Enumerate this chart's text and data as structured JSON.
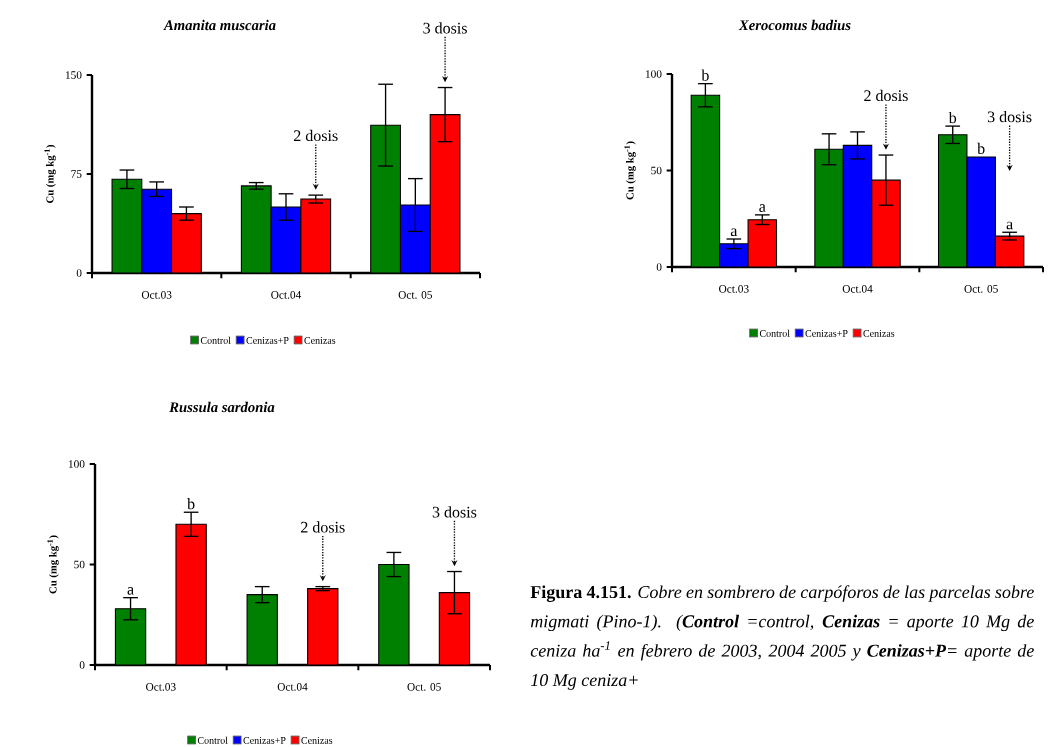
{
  "chart_data": [
    {
      "type": "bar",
      "title": "Amanita muscaria",
      "ylabel": "Cu (mg kg$^{-1}$)",
      "categories": [
        "Oct.03",
        "Oct.04",
        "Oct. 05"
      ],
      "ylim": [
        0,
        150
      ],
      "yticks": [
        0,
        75,
        150
      ],
      "legend": "bottom",
      "series": [
        {
          "name": "Control",
          "color": "#008000",
          "values": [
            71,
            66,
            112
          ],
          "errors": [
            7,
            2.5,
            31
          ]
        },
        {
          "name": "Cenizas+P",
          "color": "#0000ff",
          "values": [
            63.5,
            50,
            51.5
          ],
          "errors": [
            5.5,
            10,
            20
          ]
        },
        {
          "name": "Cenizas",
          "color": "#ff0000",
          "values": [
            45,
            56,
            120
          ],
          "errors": [
            5,
            3,
            20.5
          ]
        }
      ],
      "annotations": [
        "2 dosis",
        "3 dosis"
      ]
    },
    {
      "type": "bar",
      "title": "Xerocomus badius",
      "ylabel": "Cu (mg kg$^{-1}$)",
      "categories": [
        "Oct.03",
        "Oct.04",
        "Oct. 05"
      ],
      "ylim": [
        0,
        100
      ],
      "yticks": [
        0,
        50,
        100
      ],
      "legend": "bottom",
      "series": [
        {
          "name": "Control",
          "color": "#008000",
          "values": [
            89,
            61,
            68.5
          ],
          "errors": [
            6,
            8,
            4.5
          ],
          "value_labels": [
            "b",
            null,
            "b"
          ]
        },
        {
          "name": "Cenizas+P",
          "color": "#0000ff",
          "values": [
            12,
            63,
            57
          ],
          "errors": [
            2.5,
            7,
            null
          ],
          "value_labels": [
            "a",
            null,
            "b"
          ]
        },
        {
          "name": "Cenizas",
          "color": "#ff0000",
          "values": [
            24.5,
            45,
            16
          ],
          "errors": [
            2.5,
            13,
            2
          ],
          "value_labels": [
            "a",
            null,
            "a"
          ]
        }
      ],
      "annotations": [
        "2 dosis",
        "3 dosis"
      ]
    },
    {
      "type": "bar",
      "title": "Russula sardonia",
      "ylabel": "Cu (mg kg$^{-1}$)",
      "categories": [
        "Oct.03",
        "Oct.04",
        "Oct. 05"
      ],
      "ylim": [
        0,
        100
      ],
      "yticks": [
        0,
        50,
        100
      ],
      "legend": "bottom",
      "series": [
        {
          "name": "Control",
          "color": "#008000",
          "values": [
            28,
            35,
            50
          ],
          "errors": [
            5.5,
            4,
            6
          ],
          "value_labels": [
            "a",
            null,
            null
          ]
        },
        {
          "name": "Cenizas+P",
          "color": "#0000ff",
          "values": [
            null,
            null,
            null
          ]
        },
        {
          "name": "Cenizas",
          "color": "#ff0000",
          "values": [
            70,
            38,
            36
          ],
          "errors": [
            6,
            1,
            10.5
          ],
          "value_labels": [
            "b",
            null,
            null
          ]
        }
      ],
      "annotations": [
        "2 dosis",
        "3 dosis",
        "Figura 4.151.",
        "Cobre en sombrero de carpóforos de las parcelas sobre migmati (Pino-1). (**Control** =control, **Cenizas** = aporte 10 Mg de ceniza ha$^{-1}$ en febrero de 2003, 2004 2005 y **Cenizas+P**= aporte de 10 Mg ceniza+"
      ]
    }
  ]
}
